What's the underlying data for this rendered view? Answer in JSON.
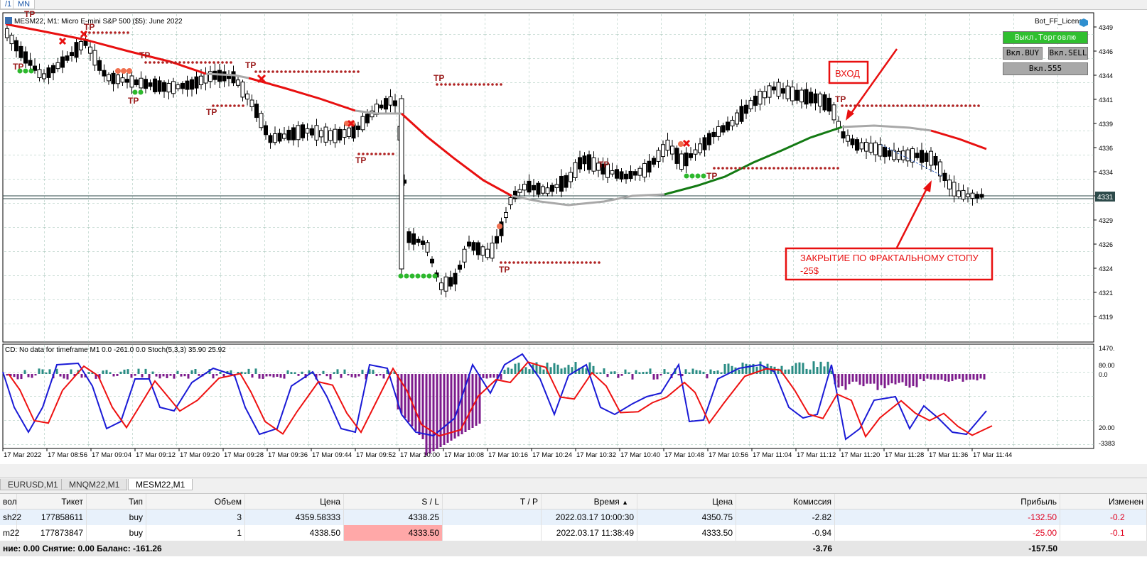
{
  "topbar": {
    "tf_left": "/1",
    "tf_right": "MN"
  },
  "chart": {
    "title": "MESM22, M1:  Micro E-mini S&P 500 ($5): June 2022",
    "license": "Bot_FF_License",
    "buttons": {
      "trade": "Выкл.Торговлю",
      "buy": "Вкл.BUY",
      "sell": "Вкл.SELL",
      "b555": "Вкл.555"
    },
    "annotations": {
      "entry": "ВХОД",
      "exit_line1": "ЗАКРЫТИЕ ПО ФРАКТАЛЬНОМУ СТОПУ",
      "exit_line2": "-25$"
    },
    "tp_label": "TP",
    "price_axis": [
      "4349",
      "4346",
      "4344",
      "4341",
      "4339",
      "4336",
      "4334",
      "4331",
      "4329",
      "4326",
      "4324",
      "4321",
      "4319"
    ],
    "current_price": "4331",
    "colors": {
      "bg": "#ffffff",
      "grid": "#9bbfb2",
      "sl_line": "#e81010",
      "sl_line_gray": "#a8a8a8",
      "sl_line_green": "#137a13",
      "tp_dots": "#b02222",
      "hist_pos": "#2a8c84",
      "hist_neg": "#7d1b8c",
      "stoch_main": "#1a1ad6",
      "stoch_signal": "#ee1111"
    }
  },
  "indicator": {
    "title": "CD: No data for timeframe M1 0.0 -261.0 0.0 Stoch(5,3,3) 35.90 25.92",
    "axis": [
      "1470.",
      "80.00",
      "0.0",
      "20.00",
      "-3383"
    ]
  },
  "time_axis": [
    "17 Mar 2022",
    "17 Mar 08:56",
    "17 Mar 09:04",
    "17 Mar 09:12",
    "17 Mar 09:20",
    "17 Mar 09:28",
    "17 Mar 09:36",
    "17 Mar 09:44",
    "17 Mar 09:52",
    "17 Mar 10:00",
    "17 Mar 10:08",
    "17 Mar 10:16",
    "17 Mar 10:24",
    "17 Mar 10:32",
    "17 Mar 10:40",
    "17 Mar 10:48",
    "17 Mar 10:56",
    "17 Mar 11:04",
    "17 Mar 11:12",
    "17 Mar 11:20",
    "17 Mar 11:28",
    "17 Mar 11:36",
    "17 Mar 11:44"
  ],
  "symbol_tabs": [
    "EURUSD,M1",
    "MNQM22,M1",
    "MESM22,M1"
  ],
  "positions": {
    "headers": {
      "symbol": "вол",
      "ticket": "Тикет",
      "type": "Тип",
      "volume": "Объем",
      "price": "Цена",
      "sl": "S / L",
      "tp": "T / P",
      "time": "Время",
      "cur_price": "Цена",
      "commission": "Комиссия",
      "profit": "Прибыль",
      "change": "Изменен"
    },
    "rows": [
      {
        "symbol": "sh22",
        "ticket": "177858611",
        "type": "buy",
        "volume": "3",
        "price": "4359.58333",
        "sl": "4338.25",
        "tp": "",
        "time": "2022.03.17 10:00:30",
        "cur_price": "4350.75",
        "commission": "-2.82",
        "profit": "-132.50",
        "change": "-0.2"
      },
      {
        "symbol": "m22",
        "ticket": "177873847",
        "type": "buy",
        "volume": "1",
        "price": "4338.50",
        "sl": "4333.50",
        "tp": "",
        "time": "2022.03.17 11:38:49",
        "cur_price": "4333.50",
        "commission": "-0.94",
        "profit": "-25.00",
        "change": "-0.1"
      }
    ],
    "total": {
      "summary": "ние: 0.00  Снятие: 0.00  Баланс: -161.26",
      "commission": "-3.76",
      "profit": "-157.50"
    }
  }
}
